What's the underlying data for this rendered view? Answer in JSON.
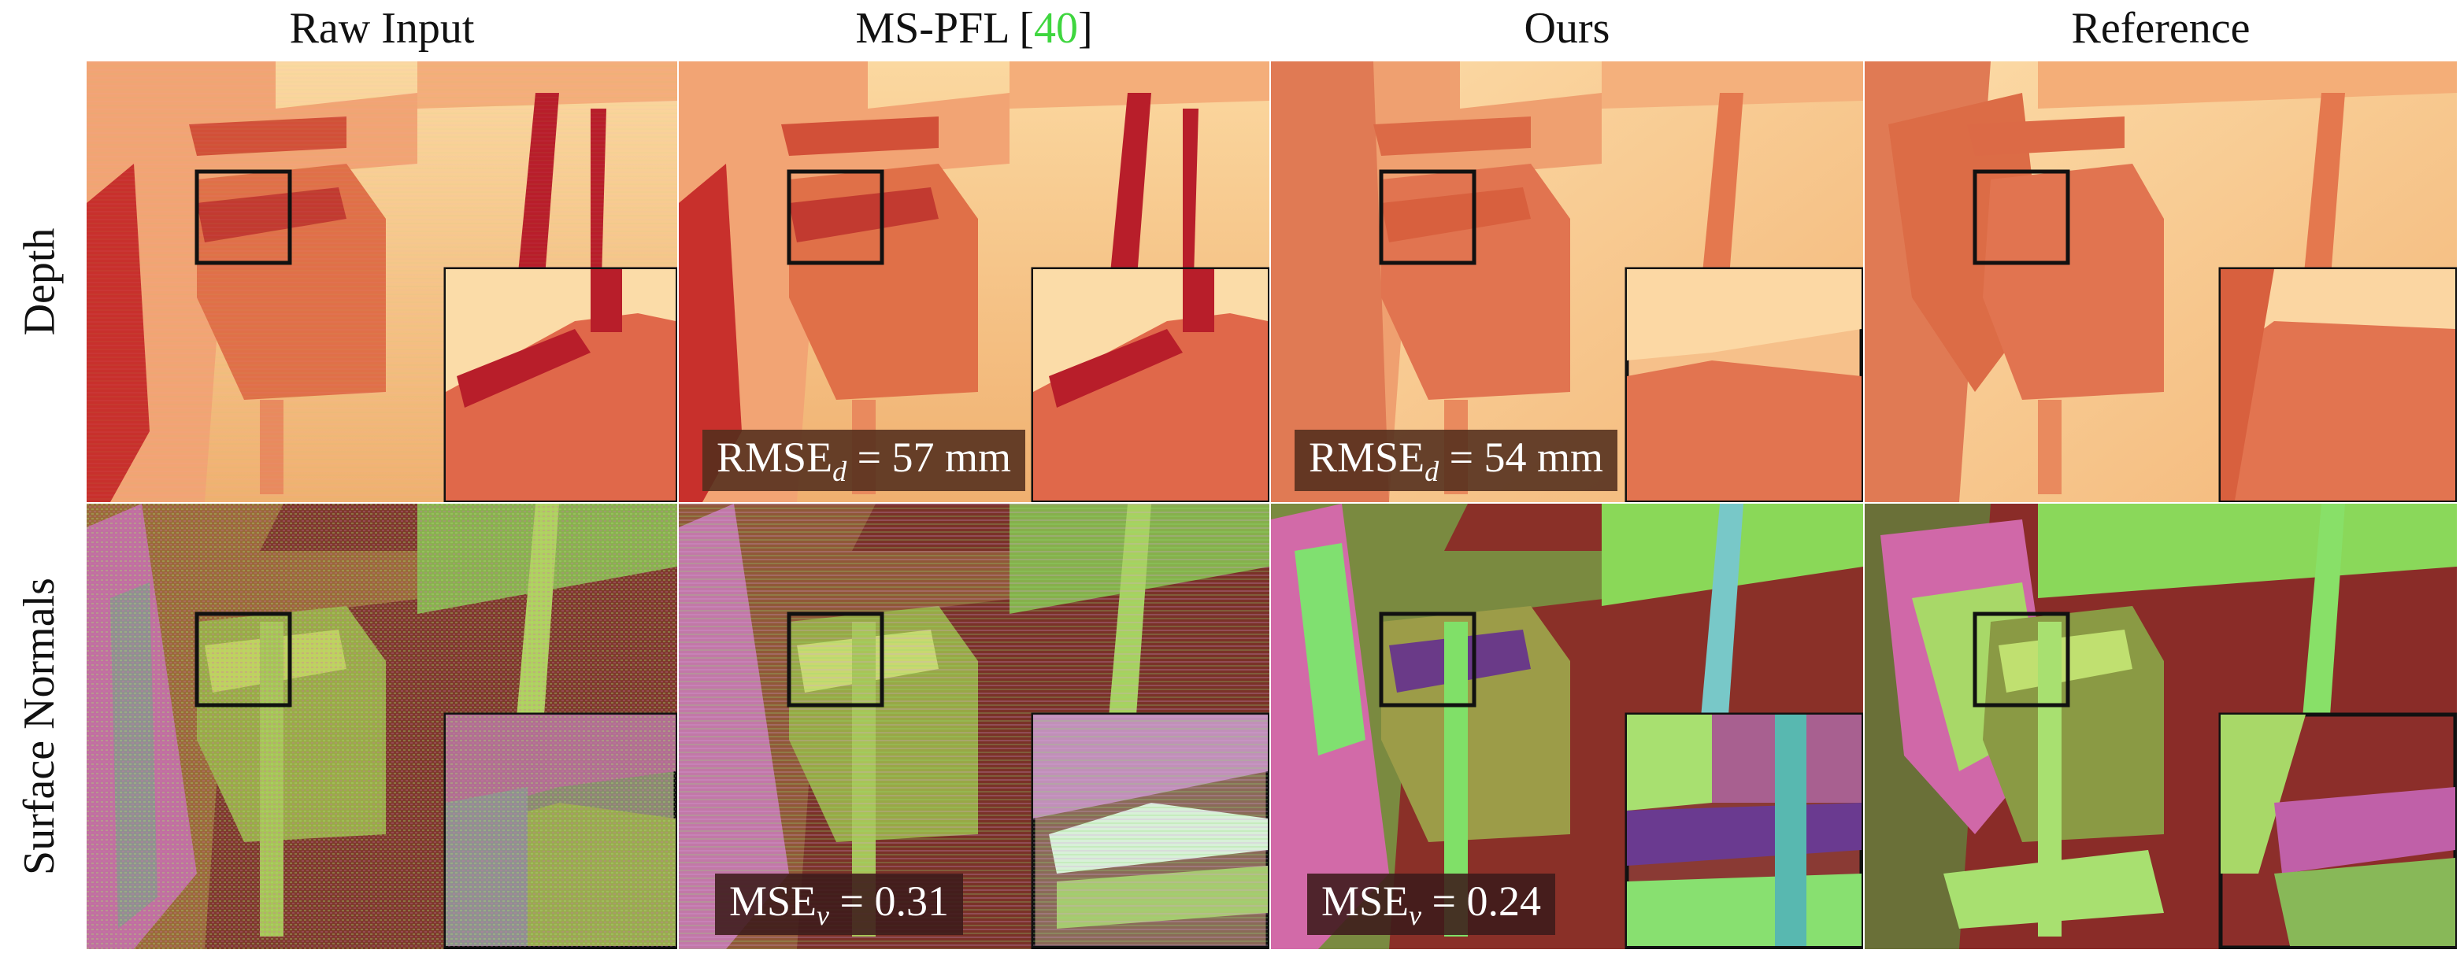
{
  "columns": [
    {
      "title": "Raw Input"
    },
    {
      "title_prefix": "MS-PFL [",
      "title_ref": "40",
      "title_suffix": "]"
    },
    {
      "title": "Ours"
    },
    {
      "title": "Reference"
    }
  ],
  "rows": [
    {
      "label": "Depth"
    },
    {
      "label": "Surface Normals"
    }
  ],
  "metrics": {
    "depth_mspfl": {
      "name": "RMSE",
      "sub": "d",
      "value": " = 57 mm"
    },
    "depth_ours": {
      "name": "RMSE",
      "sub": "d",
      "value": " = 54 mm"
    },
    "normals_mspfl": {
      "name": "MSE",
      "sub": "v",
      "value": " = 0.31"
    },
    "normals_ours": {
      "name": "MSE",
      "sub": "v",
      "value": " = 0.24"
    }
  },
  "colors": {
    "depth_near": "#b8182a",
    "depth_mid": "#e0704a",
    "depth_far": "#fde8b4",
    "normal_green": "#7ae05a",
    "normal_red": "#8a2e28",
    "normal_magenta": "#d868b0",
    "citation_green": "#3fd63f",
    "metric_box": "#522e1c"
  }
}
